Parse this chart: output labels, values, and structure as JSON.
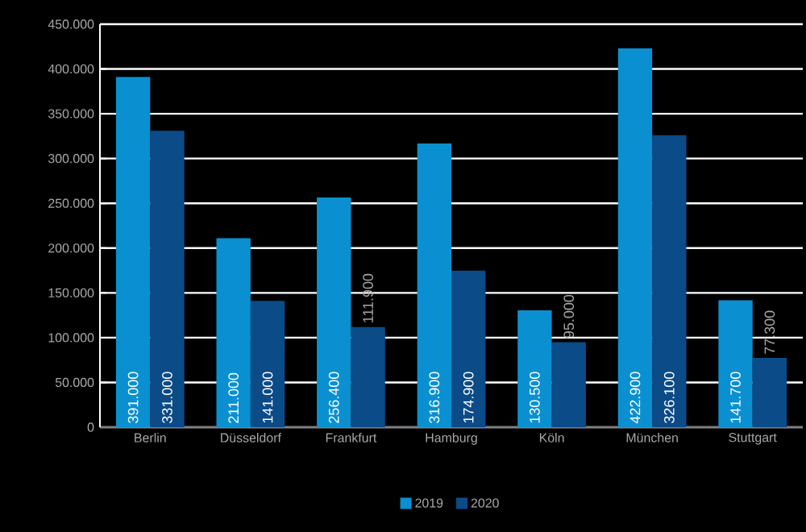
{
  "chart_data": {
    "type": "bar",
    "categories": [
      "Berlin",
      "Düsseldorf",
      "Frankfurt",
      "Hamburg",
      "Köln",
      "München",
      "Stuttgart"
    ],
    "series": [
      {
        "name": "2019",
        "color": "#0a90d0",
        "values": [
          391000,
          211000,
          256400,
          316900,
          130500,
          422900,
          141700
        ],
        "value_labels": [
          "391.000",
          "211.000",
          "256.400",
          "316.900",
          "130.500",
          "422.900",
          "141.700"
        ]
      },
      {
        "name": "2020",
        "color": "#0b4b88",
        "values": [
          331000,
          141000,
          111900,
          174900,
          95000,
          326100,
          77300
        ],
        "value_labels": [
          "331.000",
          "141.000",
          "111.900",
          "174.900",
          "95.000",
          "326.100",
          "77.300"
        ]
      }
    ],
    "ylim": [
      0,
      450000
    ],
    "yticks": [
      {
        "value": 0,
        "label": "0"
      },
      {
        "value": 50000,
        "label": "50.000"
      },
      {
        "value": 100000,
        "label": "100.000"
      },
      {
        "value": 150000,
        "label": "150.000"
      },
      {
        "value": 200000,
        "label": "200.000"
      },
      {
        "value": 250000,
        "label": "250.000"
      },
      {
        "value": 300000,
        "label": "300.000"
      },
      {
        "value": 350000,
        "label": "350.000"
      },
      {
        "value": 400000,
        "label": "400.000"
      },
      {
        "value": 450000,
        "label": "450.000"
      }
    ],
    "grid": "y",
    "legend": "bottom"
  }
}
